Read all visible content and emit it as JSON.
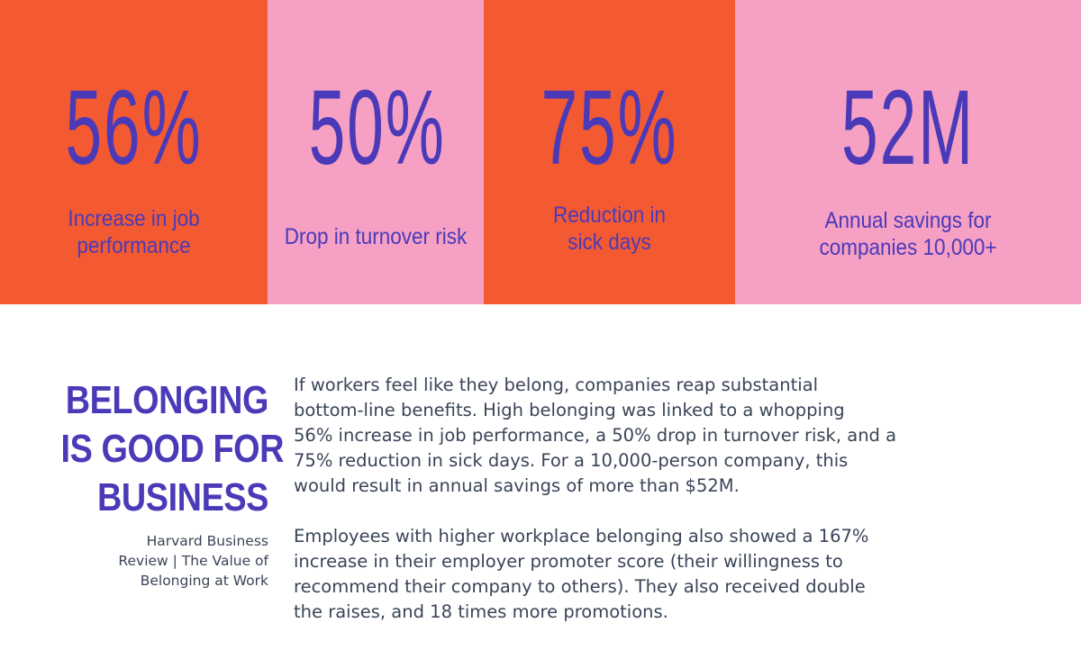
{
  "colors": {
    "orange": "#f45a32",
    "pink": "#f6a0c4",
    "purple": "#4a3ab8",
    "dark_text": "#3a4458"
  },
  "stats": [
    {
      "value": "56%",
      "caption": [
        "Increase in job",
        "performance"
      ]
    },
    {
      "value": "50%",
      "caption": [
        "Drop in turnover risk"
      ]
    },
    {
      "value": "75%",
      "caption": [
        "Reduction in",
        "sick days"
      ]
    },
    {
      "value": "52M",
      "caption": [
        "Annual savings for",
        "companies 10,000+"
      ]
    }
  ],
  "headline": [
    "BELONGING",
    "IS GOOD FOR",
    "BUSINESS"
  ],
  "source": [
    "Harvard Business",
    "Review | The Value of",
    "Belonging at Work"
  ],
  "body": [
    [
      "If workers feel like they belong, companies reap substantial",
      "bottom-line benefits. High belonging was linked to a whopping",
      "56% increase in job performance, a 50% drop in turnover risk, and a",
      "75% reduction in sick days. For a 10,000-person company, this",
      "would result in annual savings of more than $52M."
    ],
    [
      "Employees with higher workplace belonging also showed a 167%",
      "increase in their employer promoter score (their willingness to",
      "recommend their company to others). They also received double",
      "the raises, and 18 times more promotions."
    ]
  ]
}
